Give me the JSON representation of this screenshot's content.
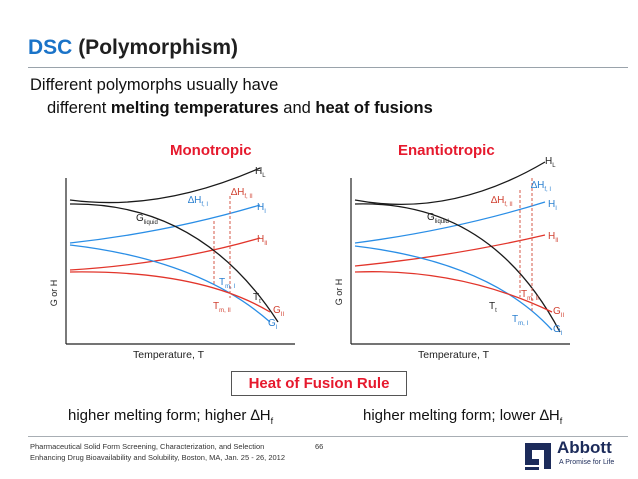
{
  "slide": {
    "title_accent": "DSC",
    "title_rest": "(Polymorphism)",
    "subtitle_line1": "Different polymorphs usually have",
    "subtitle_line2_pre": "different ",
    "subtitle_line2_bold1": "melting temperatures",
    "subtitle_line2_mid": " and ",
    "subtitle_line2_bold2": "heat of fusions"
  },
  "monotropic": {
    "heading": "Monotropic",
    "label_HL": "H",
    "label_HL_sub": "L",
    "label_HI": "H",
    "label_HI_sub": "I",
    "label_HII": "H",
    "label_HII_sub": "II",
    "label_dHfI": "∆H",
    "label_dHfI_sub": "f, I",
    "label_dHfII": "∆H",
    "label_dHfII_sub": "f, II",
    "label_Gliquid": "G",
    "label_Gliquid_sub": "liquid",
    "label_TmI": "T",
    "label_TmI_sub": "m, I",
    "label_TmII": "T",
    "label_TmII_sub": "m, II",
    "label_Tt": "T",
    "label_Tt_sub": "t",
    "label_GII": "G",
    "label_GII_sub": "II",
    "label_GI": "G",
    "label_GI_sub": "I",
    "axis_y": "G or H",
    "axis_x": "Temperature, T"
  },
  "enantiotropic": {
    "heading": "Enantiotropic",
    "label_HL": "H",
    "label_HL_sub": "L",
    "label_HI": "H",
    "label_HI_sub": "I",
    "label_HII": "H",
    "label_HII_sub": "II",
    "label_dHfI": "∆H",
    "label_dHfI_sub": "f, I",
    "label_dHfII": "∆H",
    "label_dHfII_sub": "f, II",
    "label_Gliquid": "G",
    "label_Gliquid_sub": "liquid",
    "label_TmII": "T",
    "label_TmII_sub": "m, II",
    "label_TmI": "T",
    "label_TmI_sub": "m, I",
    "label_Tt": "T",
    "label_Tt_sub": "t",
    "label_GII": "G",
    "label_GII_sub": "II",
    "label_GI": "G",
    "label_GI_sub": "I",
    "axis_y": "G or H",
    "axis_x": "Temperature, T"
  },
  "rule": {
    "box_text": "Heat of Fusion Rule",
    "left_note": "higher melting form; higher ∆H",
    "left_note_sub": "f",
    "right_note": "higher melting form; lower ∆H",
    "right_note_sub": "f"
  },
  "footer": {
    "line1": "Pharmaceutical Solid Form Screening, Characterization, and Selection",
    "line2": "Enhancing Drug Bioavailability and Solubility, Boston, MA, Jan. 25 - 26, 2012",
    "page": "66",
    "brand_name": "Abbott",
    "brand_tagline": "A Promise for Life"
  },
  "colors": {
    "accent_blue": "#1a73c8",
    "curve_black": "#1a1a1a",
    "curve_blue": "#2a8ee6",
    "curve_red": "#e2352b",
    "dashed_guide": "#d65a4a",
    "heading_red": "#e6192d",
    "brand_navy": "#1c2b5a"
  }
}
